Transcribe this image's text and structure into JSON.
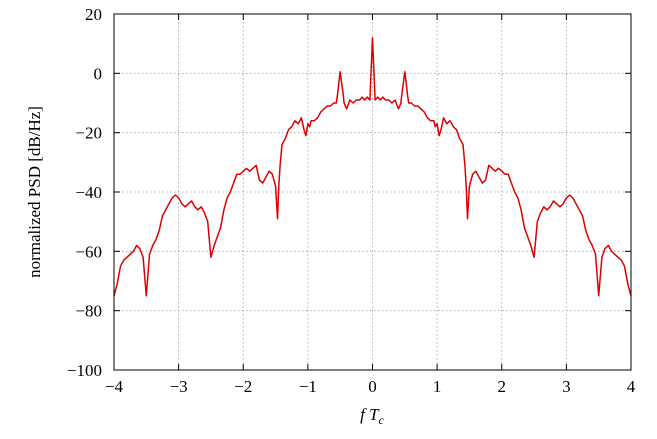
{
  "chart_data": {
    "type": "line",
    "title": "",
    "xlabel_main": "f T",
    "xlabel_sub": "c",
    "ylabel": "normalized PSD [dB/Hz]",
    "xlim": [
      -4,
      4
    ],
    "ylim": [
      -100,
      20
    ],
    "xticks": [
      -4,
      -3,
      -2,
      -1,
      0,
      1,
      2,
      3,
      4
    ],
    "yticks": [
      -100,
      -80,
      -60,
      -40,
      -20,
      0,
      20
    ],
    "xtick_labels": [
      "−4",
      "−3",
      "−2",
      "−1",
      "0",
      "1",
      "2",
      "3",
      "4"
    ],
    "ytick_labels": [
      "−100",
      "−80",
      "−60",
      "−40",
      "−20",
      "0",
      "20"
    ],
    "grid": true,
    "line_color": "#dd0000",
    "series": [
      {
        "x": [
          0,
          0.04,
          0.08,
          0.12,
          0.16,
          0.2,
          0.25,
          0.3,
          0.35,
          0.4,
          0.44,
          0.46,
          0.48,
          0.5,
          0.52,
          0.54,
          0.56,
          0.6,
          0.65,
          0.7,
          0.75,
          0.8,
          0.85,
          0.9,
          0.95,
          0.97,
          1.0,
          1.03,
          1.06,
          1.1,
          1.15,
          1.2,
          1.25,
          1.3,
          1.35,
          1.4,
          1.43,
          1.45,
          1.47,
          1.5,
          1.55,
          1.6,
          1.65,
          1.7,
          1.75,
          1.8,
          1.85,
          1.9,
          1.95,
          2.0,
          2.05,
          2.1,
          2.15,
          2.2,
          2.25,
          2.3,
          2.35,
          2.4,
          2.45,
          2.5,
          2.55,
          2.6,
          2.65,
          2.7,
          2.75,
          2.8,
          2.85,
          2.9,
          2.95,
          3.0,
          3.05,
          3.1,
          3.15,
          3.2,
          3.25,
          3.3,
          3.35,
          3.4,
          3.45,
          3.5,
          3.55,
          3.6,
          3.65,
          3.7,
          3.75,
          3.8,
          3.85,
          3.9,
          3.95,
          4.0
        ],
        "y": [
          12,
          -9,
          -8,
          -9,
          -8,
          -9,
          -9,
          -10,
          -9,
          -12,
          -10,
          -6,
          -3,
          0.5,
          -3,
          -7,
          -10,
          -10,
          -11,
          -11,
          -12,
          -13,
          -15,
          -16,
          -16,
          -18,
          -17,
          -21,
          -19,
          -15,
          -17,
          -16,
          -18,
          -19,
          -22,
          -24,
          -31,
          -38,
          -49,
          -38,
          -34,
          -33,
          -35,
          -37,
          -36,
          -31,
          -32,
          -33,
          -32,
          -33,
          -34,
          -34,
          -37,
          -40,
          -42,
          -46,
          -52,
          -55,
          -58,
          -62,
          -50,
          -47,
          -45,
          -46,
          -45,
          -43,
          -44,
          -45,
          -44,
          -42,
          -41,
          -42,
          -44,
          -46,
          -48,
          -53,
          -56,
          -58,
          -61,
          -75,
          -62,
          -59,
          -58,
          -60,
          -61,
          -62,
          -63,
          -65,
          -71,
          -75
        ]
      }
    ]
  }
}
